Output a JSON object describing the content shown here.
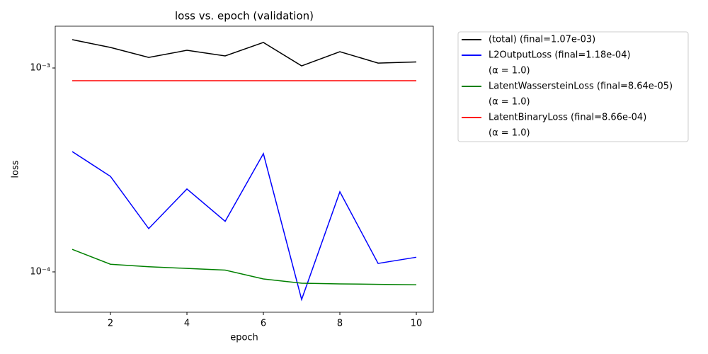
{
  "chart_data": {
    "type": "line",
    "title": "loss vs. epoch (validation)",
    "x_label": "epoch",
    "y_label": "loss",
    "x": [
      1,
      2,
      3,
      4,
      5,
      6,
      7,
      8,
      9,
      10
    ],
    "series": [
      {
        "name": "(total)      (final=1.07e-03)",
        "color": "#000000",
        "values": [
          0.001377,
          0.001261,
          0.001127,
          0.001221,
          0.001146,
          0.001334,
          0.001024,
          0.001202,
          0.001057,
          0.00107
        ]
      },
      {
        "name": "L2OutputLoss (final=1.18e-04)",
        "note": "(α = 1.0)",
        "color": "#0000ff",
        "values": [
          0.000389,
          0.000294,
          0.000163,
          0.000255,
          0.000177,
          0.00038,
          7.32e-05,
          0.000247,
          0.00011,
          0.000118
        ]
      },
      {
        "name": "LatentWassersteinLoss (final=8.64e-05)",
        "note": "(α = 1.0)",
        "color": "#008000",
        "values": [
          0.000129,
          0.000109,
          0.000106,
          0.000104,
          0.000102,
          9.23e-05,
          8.8e-05,
          8.73e-05,
          8.69e-05,
          8.64e-05
        ]
      },
      {
        "name": "LatentBinaryLoss (final=8.66e-04)",
        "note": "(α = 1.0)",
        "color": "#ff0000",
        "values": [
          0.000866,
          0.000866,
          0.000866,
          0.000866,
          0.000866,
          0.000866,
          0.000866,
          0.000866,
          0.000866,
          0.000866
        ]
      }
    ],
    "xlim": [
      0.555,
      10.444
    ],
    "xticks": [
      2,
      4,
      6,
      8,
      10
    ],
    "ylim": [
      6.34e-05,
      0.001603
    ],
    "log_y": true,
    "yticks": [
      {
        "value": 0.0001,
        "label": "10⁻⁴"
      },
      {
        "value": 0.001,
        "label": "10⁻³"
      }
    ],
    "legend": "outside-right"
  }
}
